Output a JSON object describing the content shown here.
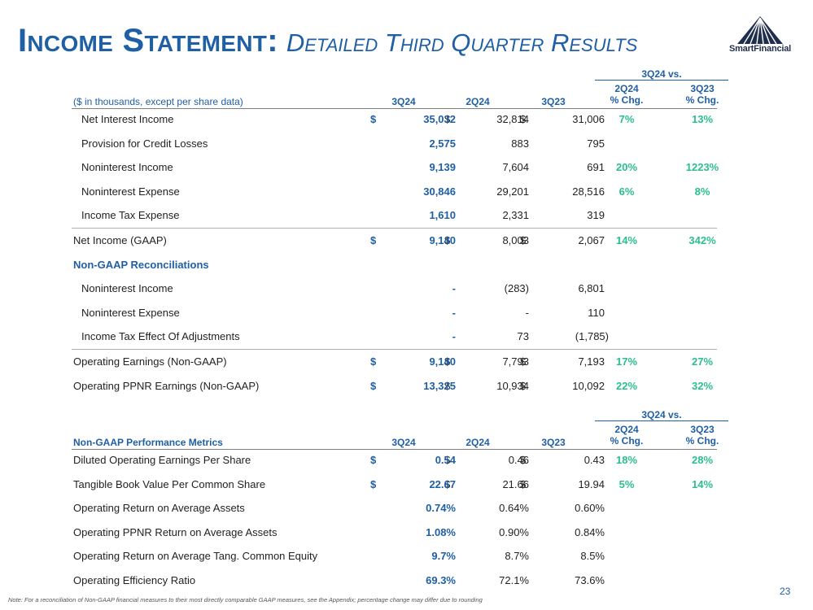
{
  "header": {
    "title_main": "Income Statement:",
    "title_sub": "Detailed Third Quarter Results",
    "logo_text": "SmartFinancial",
    "page_number": "23"
  },
  "footnote": "Note: For a reconciliation of Non-GAAP financial measures to their most directly comparable GAAP measures, see the Appendix; percentage change may differ due to rounding",
  "colors": {
    "brand_blue": "#1f5fa6",
    "pct_green": "#2bbf8a",
    "logo_navy": "#1f2e4d"
  },
  "income_table": {
    "vs_label": "3Q24 vs.",
    "units_label": "($ in thousands, except per share data)",
    "col_3q24": "3Q24",
    "col_2q24": "2Q24",
    "col_3q23": "3Q23",
    "pct1_line1": "2Q24",
    "pct1_line2": "% Chg.",
    "pct2_line1": "3Q23",
    "pct2_line2": "% Chg.",
    "rows": [
      {
        "label": "Net Interest Income",
        "dollar": "$",
        "v1": "35,032",
        "v2": "32,814",
        "v3": "31,006",
        "p1": "7%",
        "p2": "13%"
      },
      {
        "label": "Provision for Credit Losses",
        "v1": "2,575",
        "v2": "883",
        "v3": "795"
      },
      {
        "label": "Noninterest Income",
        "v1": "9,139",
        "v2": "7,604",
        "v3": "691",
        "p1": "20%",
        "p2": "1223%"
      },
      {
        "label": "Noninterest Expense",
        "v1": "30,846",
        "v2": "29,201",
        "v3": "28,516",
        "p1": "6%",
        "p2": "8%"
      },
      {
        "label": "Income Tax Expense",
        "v1": "1,610",
        "v2": "2,331",
        "v3": "319"
      },
      {
        "label": "Net Income (GAAP)",
        "dollar": "$",
        "v1": "9,140",
        "v2": "8,003",
        "v3": "2,067",
        "p1": "14%",
        "p2": "342%"
      },
      {
        "label": "Non-GAAP Reconciliations"
      },
      {
        "label": "Noninterest Income",
        "v1": "-",
        "v2": "(283)",
        "v3": "6,801"
      },
      {
        "label": "Noninterest Expense",
        "v1": "-",
        "v2": "-",
        "v3": "110"
      },
      {
        "label": "Income Tax Effect Of Adjustments",
        "v1": "-",
        "v2": "73",
        "v3": "(1,785)"
      },
      {
        "label": "Operating Earnings (Non-GAAP)",
        "dollar": "$",
        "v1": "9,140",
        "v2": "7,793",
        "v3": "7,193",
        "p1": "17%",
        "p2": "27%"
      },
      {
        "label": "Operating PPNR Earnings (Non-GAAP)",
        "dollar": "$",
        "v1": "13,325",
        "v2": "10,934",
        "v3": "10,092",
        "p1": "22%",
        "p2": "32%"
      }
    ]
  },
  "metrics_table": {
    "vs_label": "3Q24 vs.",
    "title": "Non-GAAP Performance Metrics",
    "col_3q24": "3Q24",
    "col_2q24": "2Q24",
    "col_3q23": "3Q23",
    "pct1_line1": "2Q24",
    "pct1_line2": "% Chg.",
    "pct2_line1": "3Q23",
    "pct2_line2": "% Chg.",
    "rows": [
      {
        "label": "Diluted Operating Earnings Per Share",
        "dollar": "$",
        "v1": "0.54",
        "v2": "0.46",
        "v3": "0.43",
        "p1": "18%",
        "p2": "28%"
      },
      {
        "label": "Tangible Book Value Per Common Share",
        "dollar": "$",
        "v1": "22.67",
        "v2": "21.66",
        "v3": "19.94",
        "p1": "5%",
        "p2": "14%"
      },
      {
        "label": "Operating Return on Average Assets",
        "v1": "0.74%",
        "v2": "0.64%",
        "v3": "0.60%"
      },
      {
        "label": "Operating PPNR Return on Average Assets",
        "v1": "1.08%",
        "v2": "0.90%",
        "v3": "0.84%"
      },
      {
        "label": "Operating Return on Average Tang. Common Equity",
        "v1": "9.7%",
        "v2": "8.7%",
        "v3": "8.5%"
      },
      {
        "label": "Operating Efficiency Ratio",
        "v1": "69.3%",
        "v2": "72.1%",
        "v3": "73.6%"
      }
    ]
  }
}
